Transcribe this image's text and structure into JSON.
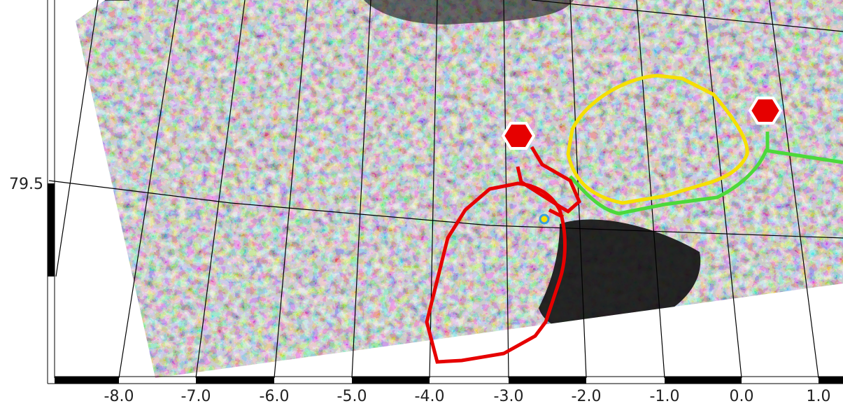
{
  "map": {
    "longitude_labels": [
      "-8.0",
      "-7.0",
      "-6.0",
      "-5.0",
      "-4.0",
      "-3.0",
      "-2.0",
      "-1.0",
      "0.0",
      "1.0"
    ],
    "latitude_labels": [
      "79.5"
    ]
  }
}
